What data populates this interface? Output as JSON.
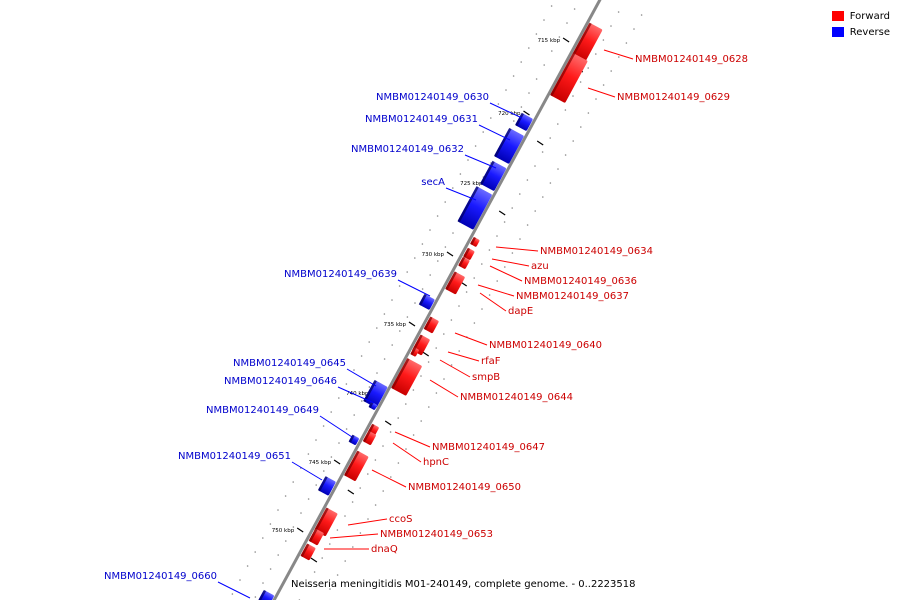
{
  "legend": {
    "forward_label": "Forward",
    "reverse_label": "Reverse",
    "forward_color": "#ff0000",
    "reverse_color": "#0000ff"
  },
  "footer": {
    "genome_label": "Neisseria meningitidis M01-240149, complete genome. - 0..2223518"
  },
  "ticks": [
    "715 kbp",
    "720 kbp",
    "725 kbp",
    "730 kbp",
    "735 kbp",
    "740 kbp",
    "745 kbp",
    "750 kbp"
  ],
  "genes_forward": [
    "NMBM01240149_0628",
    "NMBM01240149_0629",
    "NMBM01240149_0634",
    "azu",
    "NMBM01240149_0636",
    "NMBM01240149_0637",
    "dapE",
    "NMBM01240149_0640",
    "rfaF",
    "smpB",
    "NMBM01240149_0644",
    "NMBM01240149_0647",
    "hpnC",
    "NMBM01240149_0650",
    "ccoS",
    "NMBM01240149_0653",
    "dnaQ"
  ],
  "genes_reverse": [
    "NMBM01240149_0630",
    "NMBM01240149_0631",
    "NMBM01240149_0632",
    "secA",
    "NMBM01240149_0639",
    "NMBM01240149_0645",
    "NMBM01240149_0646",
    "NMBM01240149_0649",
    "NMBM01240149_0651",
    "NMBM01240149_0660"
  ]
}
